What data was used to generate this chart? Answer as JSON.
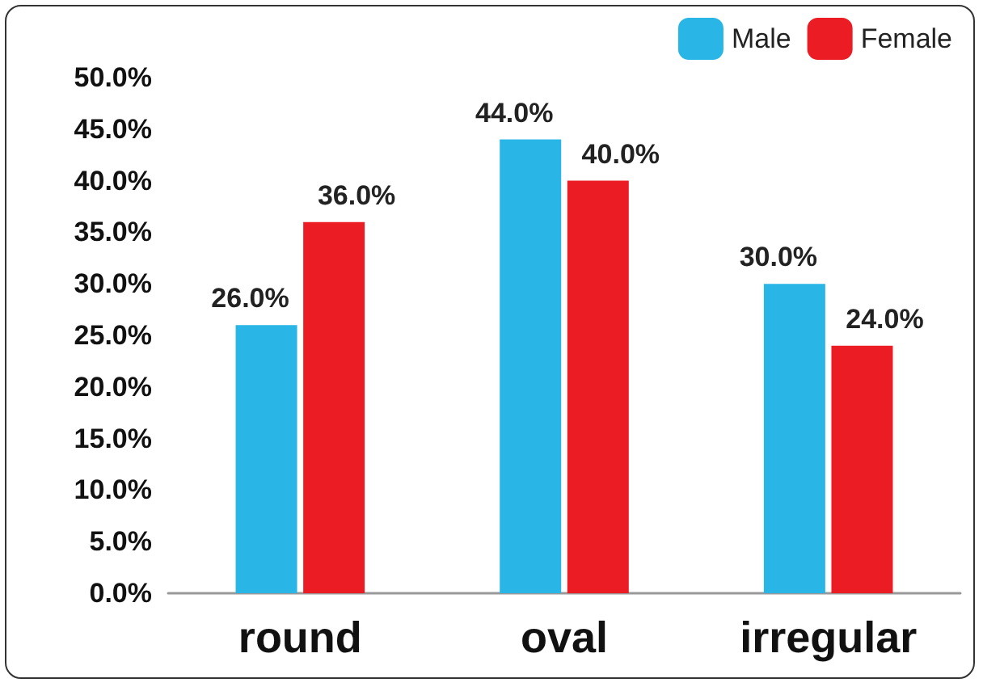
{
  "chart_data": {
    "type": "bar",
    "categories": [
      "round",
      "oval",
      "irregular"
    ],
    "series": [
      {
        "name": "Male",
        "color": "#29b6e6",
        "values": [
          26,
          44,
          30
        ],
        "value_labels": [
          "26.0%",
          "44.0%",
          "30.0%"
        ]
      },
      {
        "name": "Female",
        "color": "#ec1c24",
        "values": [
          36,
          40,
          24
        ],
        "value_labels": [
          "36.0%",
          "40.0%",
          "24.0%"
        ]
      }
    ],
    "ylim": [
      0,
      50
    ],
    "yticks": [
      {
        "value": 0,
        "label": "0.0%"
      },
      {
        "value": 5,
        "label": "5.0%"
      },
      {
        "value": 10,
        "label": "10.0%"
      },
      {
        "value": 15,
        "label": "15.0%"
      },
      {
        "value": 20,
        "label": "20.0%"
      },
      {
        "value": 25,
        "label": "25.0%"
      },
      {
        "value": 30,
        "label": "30.0%"
      },
      {
        "value": 35,
        "label": "35.0%"
      },
      {
        "value": 40,
        "label": "40.0%"
      },
      {
        "value": 45,
        "label": "45.0%"
      },
      {
        "value": 50,
        "label": "50.0%"
      }
    ],
    "grid": false,
    "legend": "top right"
  }
}
